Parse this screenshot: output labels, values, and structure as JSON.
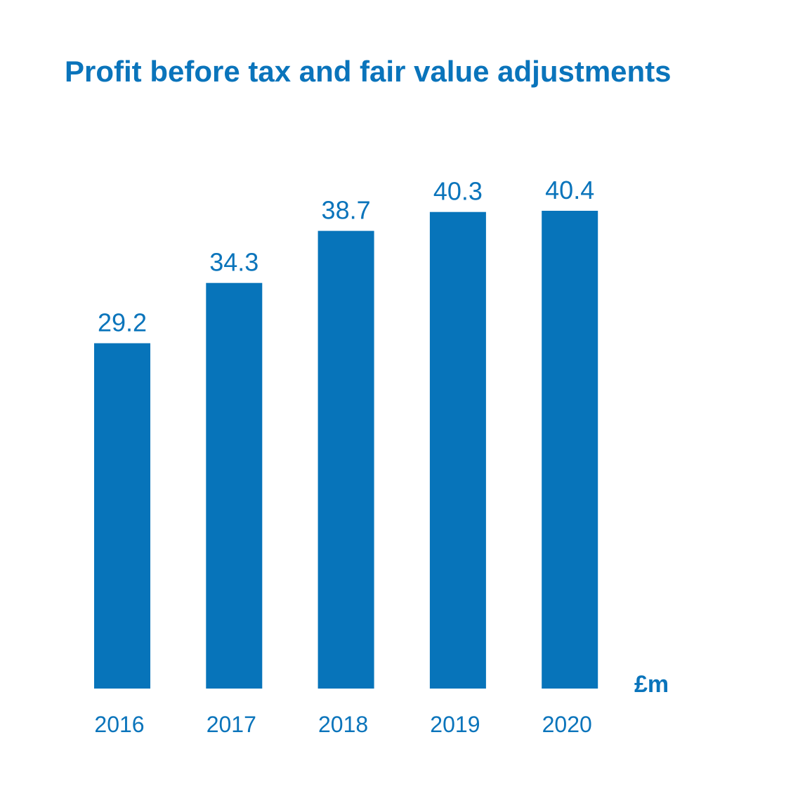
{
  "chart_data": {
    "type": "bar",
    "title": "Profit before tax and fair value adjustments",
    "unit": "£m",
    "categories": [
      "2016",
      "2017",
      "2018",
      "2019",
      "2020"
    ],
    "values": [
      29.2,
      34.3,
      38.7,
      40.3,
      40.4
    ],
    "value_labels": [
      "29.2",
      "34.3",
      "38.7",
      "40.3",
      "40.4"
    ],
    "ylim": [
      0,
      40.4
    ],
    "grid": false,
    "legend": "none",
    "bar_color": "#0774ba",
    "text_color": "#0a74bb"
  }
}
